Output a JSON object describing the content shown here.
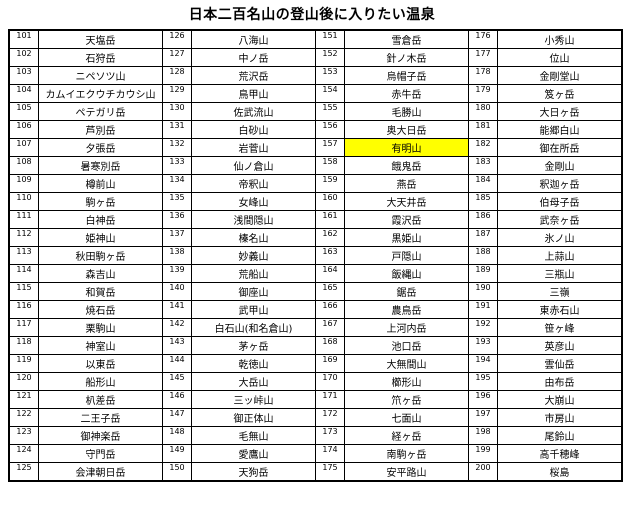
{
  "title": "日本二百名山の登山後に入りたい温泉",
  "highlight": {
    "number": "157",
    "color": "#ffff00"
  },
  "table": {
    "columns": [
      {
        "entries": [
          [
            "101",
            "天塩岳"
          ],
          [
            "102",
            "石狩岳"
          ],
          [
            "103",
            "ニペソツ山"
          ],
          [
            "104",
            "カムイエクウチカウシ山"
          ],
          [
            "105",
            "ペテガリ岳"
          ],
          [
            "106",
            "芦別岳"
          ],
          [
            "107",
            "夕張岳"
          ],
          [
            "108",
            "暑寒別岳"
          ],
          [
            "109",
            "樽前山"
          ],
          [
            "110",
            "駒ヶ岳"
          ],
          [
            "111",
            "白神岳"
          ],
          [
            "112",
            "姫神山"
          ],
          [
            "113",
            "秋田駒ヶ岳"
          ],
          [
            "114",
            "森吉山"
          ],
          [
            "115",
            "和賀岳"
          ],
          [
            "116",
            "焼石岳"
          ],
          [
            "117",
            "栗駒山"
          ],
          [
            "118",
            "神室山"
          ],
          [
            "119",
            "以東岳"
          ],
          [
            "120",
            "船形山"
          ],
          [
            "121",
            "朳差岳"
          ],
          [
            "122",
            "二王子岳"
          ],
          [
            "123",
            "御神楽岳"
          ],
          [
            "124",
            "守門岳"
          ],
          [
            "125",
            "会津朝日岳"
          ]
        ]
      },
      {
        "entries": [
          [
            "126",
            "八海山"
          ],
          [
            "127",
            "中ノ岳"
          ],
          [
            "128",
            "荒沢岳"
          ],
          [
            "129",
            "鳥甲山"
          ],
          [
            "130",
            "佐武流山"
          ],
          [
            "131",
            "白砂山"
          ],
          [
            "132",
            "岩菅山"
          ],
          [
            "133",
            "仙ノ倉山"
          ],
          [
            "134",
            "帝釈山"
          ],
          [
            "135",
            "女峰山"
          ],
          [
            "136",
            "浅間隠山"
          ],
          [
            "137",
            "榛名山"
          ],
          [
            "138",
            "妙義山"
          ],
          [
            "139",
            "荒船山"
          ],
          [
            "140",
            "御座山"
          ],
          [
            "141",
            "武甲山"
          ],
          [
            "142",
            "白石山(和名倉山)"
          ],
          [
            "143",
            "茅ヶ岳"
          ],
          [
            "144",
            "乾徳山"
          ],
          [
            "145",
            "大岳山"
          ],
          [
            "146",
            "三ッ峠山"
          ],
          [
            "147",
            "御正体山"
          ],
          [
            "148",
            "毛無山"
          ],
          [
            "149",
            "愛鷹山"
          ],
          [
            "150",
            "天狗岳"
          ]
        ]
      },
      {
        "entries": [
          [
            "151",
            "雪倉岳"
          ],
          [
            "152",
            "針ノ木岳"
          ],
          [
            "153",
            "烏帽子岳"
          ],
          [
            "154",
            "赤牛岳"
          ],
          [
            "155",
            "毛勝山"
          ],
          [
            "156",
            "奥大日岳"
          ],
          [
            "157",
            "有明山"
          ],
          [
            "158",
            "餓鬼岳"
          ],
          [
            "159",
            "燕岳"
          ],
          [
            "160",
            "大天井岳"
          ],
          [
            "161",
            "霞沢岳"
          ],
          [
            "162",
            "黒姫山"
          ],
          [
            "163",
            "戸隠山"
          ],
          [
            "164",
            "飯縄山"
          ],
          [
            "165",
            "鋸岳"
          ],
          [
            "166",
            "農鳥岳"
          ],
          [
            "167",
            "上河内岳"
          ],
          [
            "168",
            "池口岳"
          ],
          [
            "169",
            "大無間山"
          ],
          [
            "170",
            "櫛形山"
          ],
          [
            "171",
            "笊ヶ岳"
          ],
          [
            "172",
            "七面山"
          ],
          [
            "173",
            "経ヶ岳"
          ],
          [
            "174",
            "南駒ヶ岳"
          ],
          [
            "175",
            "安平路山"
          ]
        ]
      },
      {
        "entries": [
          [
            "176",
            "小秀山"
          ],
          [
            "177",
            "位山"
          ],
          [
            "178",
            "金剛堂山"
          ],
          [
            "179",
            "笈ヶ岳"
          ],
          [
            "180",
            "大日ヶ岳"
          ],
          [
            "181",
            "能郷白山"
          ],
          [
            "182",
            "御在所岳"
          ],
          [
            "183",
            "金剛山"
          ],
          [
            "184",
            "釈迦ヶ岳"
          ],
          [
            "185",
            "伯母子岳"
          ],
          [
            "186",
            "武奈ヶ岳"
          ],
          [
            "187",
            "氷ノ山"
          ],
          [
            "188",
            "上蒜山"
          ],
          [
            "189",
            "三瓶山"
          ],
          [
            "190",
            "三嶺"
          ],
          [
            "191",
            "東赤石山"
          ],
          [
            "192",
            "笹ヶ峰"
          ],
          [
            "193",
            "英彦山"
          ],
          [
            "194",
            "雲仙岳"
          ],
          [
            "195",
            "由布岳"
          ],
          [
            "196",
            "大崩山"
          ],
          [
            "197",
            "市房山"
          ],
          [
            "198",
            "尾鈴山"
          ],
          [
            "199",
            "高千穂峰"
          ],
          [
            "200",
            "桜島"
          ]
        ]
      }
    ]
  }
}
